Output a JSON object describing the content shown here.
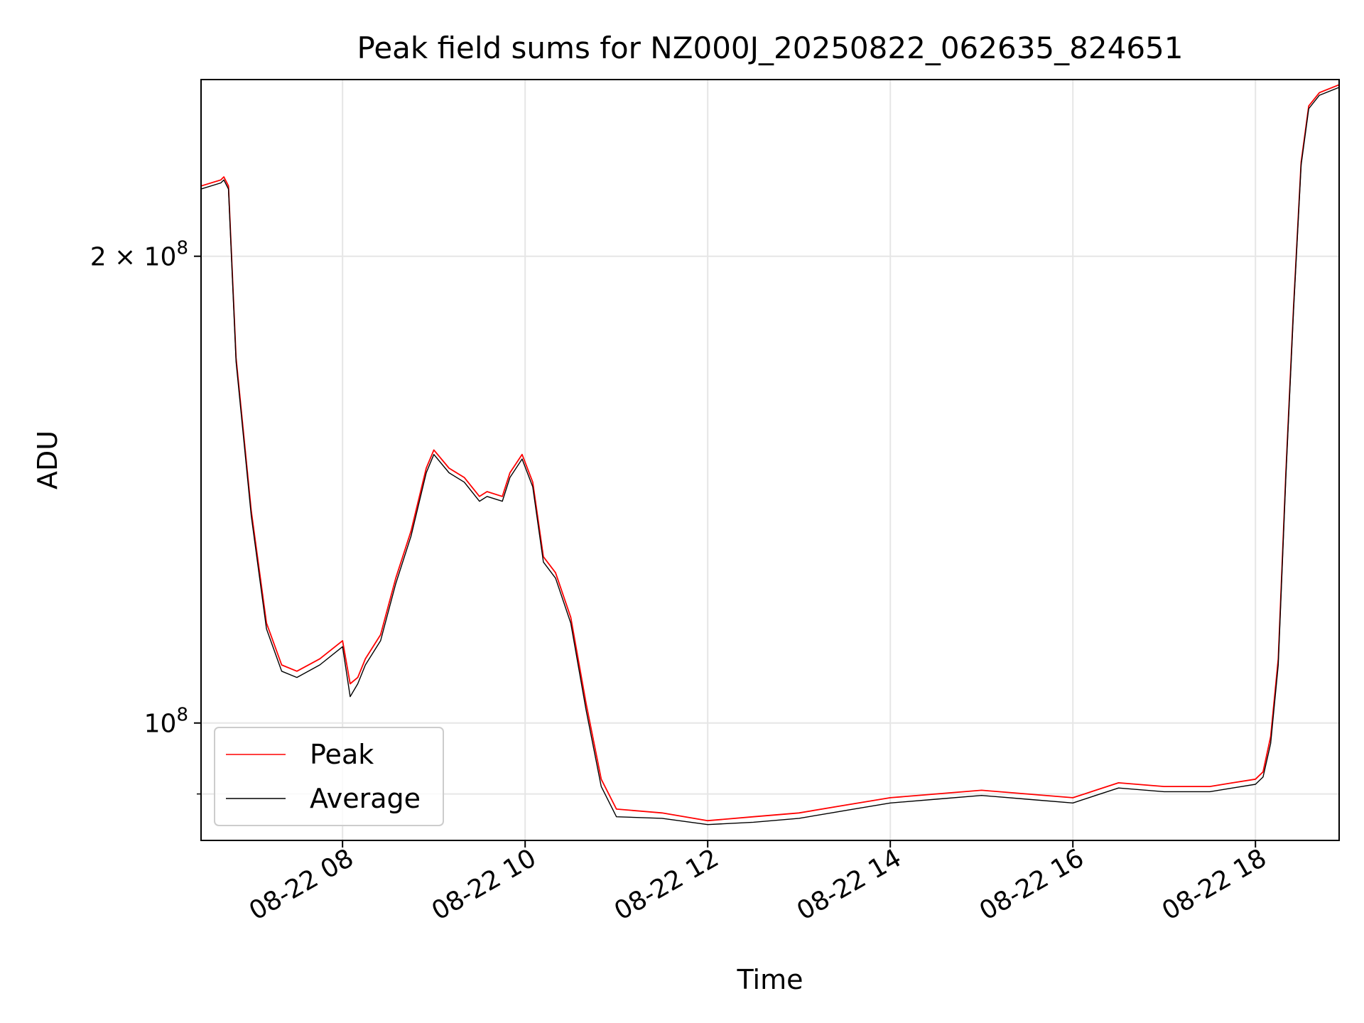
{
  "chart_data": {
    "type": "line",
    "title": "Peak field sums for NZ000J_20250822_062635_824651",
    "xlabel": "Time",
    "ylabel": "ADU",
    "yscale": "log",
    "grid": true,
    "legend_position": "lower-left",
    "xlim": [
      "2025-08-22 06:27",
      "2025-08-22 18:55"
    ],
    "ylim": [
      84000000,
      260000000
    ],
    "x_ticks": [
      {
        "value": "2025-08-22 08:00",
        "label": "08-22 08"
      },
      {
        "value": "2025-08-22 10:00",
        "label": "08-22 10"
      },
      {
        "value": "2025-08-22 12:00",
        "label": "08-22 12"
      },
      {
        "value": "2025-08-22 14:00",
        "label": "08-22 14"
      },
      {
        "value": "2025-08-22 16:00",
        "label": "08-22 16"
      },
      {
        "value": "2025-08-22 18:00",
        "label": "08-22 18"
      }
    ],
    "y_ticks": [
      {
        "value": 100000000,
        "base": "10",
        "exp": "8",
        "mantissa": ""
      },
      {
        "value": 200000000,
        "base": "10",
        "exp": "8",
        "mantissa": "2 × "
      }
    ],
    "y_minor_ticks": [
      90000000
    ],
    "colors": {
      "peak": "#ff0000",
      "average": "#000000",
      "grid": "#e6e6e6"
    },
    "series": [
      {
        "name": "Peak",
        "color": "#ff0000",
        "x": [
          "2025-08-22 06:27",
          "2025-08-22 06:40",
          "2025-08-22 06:42",
          "2025-08-22 06:45",
          "2025-08-22 06:50",
          "2025-08-22 07:00",
          "2025-08-22 07:10",
          "2025-08-22 07:20",
          "2025-08-22 07:30",
          "2025-08-22 07:45",
          "2025-08-22 08:00",
          "2025-08-22 08:05",
          "2025-08-22 08:10",
          "2025-08-22 08:15",
          "2025-08-22 08:25",
          "2025-08-22 08:35",
          "2025-08-22 08:45",
          "2025-08-22 08:55",
          "2025-08-22 09:00",
          "2025-08-22 09:10",
          "2025-08-22 09:20",
          "2025-08-22 09:30",
          "2025-08-22 09:35",
          "2025-08-22 09:45",
          "2025-08-22 09:50",
          "2025-08-22 09:58",
          "2025-08-22 10:05",
          "2025-08-22 10:12",
          "2025-08-22 10:20",
          "2025-08-22 10:30",
          "2025-08-22 10:40",
          "2025-08-22 10:50",
          "2025-08-22 11:00",
          "2025-08-22 11:30",
          "2025-08-22 12:00",
          "2025-08-22 12:30",
          "2025-08-22 13:00",
          "2025-08-22 13:30",
          "2025-08-22 14:00",
          "2025-08-22 14:30",
          "2025-08-22 15:00",
          "2025-08-22 15:30",
          "2025-08-22 16:00",
          "2025-08-22 16:15",
          "2025-08-22 16:30",
          "2025-08-22 17:00",
          "2025-08-22 17:30",
          "2025-08-22 17:45",
          "2025-08-22 18:00",
          "2025-08-22 18:05",
          "2025-08-22 18:10",
          "2025-08-22 18:15",
          "2025-08-22 18:20",
          "2025-08-22 18:25",
          "2025-08-22 18:30",
          "2025-08-22 18:35",
          "2025-08-22 18:42",
          "2025-08-22 18:55"
        ],
        "values": [
          222000000,
          224000000,
          225000000,
          222000000,
          172000000,
          137000000,
          116000000,
          109000000,
          108000000,
          110000000,
          113000000,
          106000000,
          107000000,
          110000000,
          114000000,
          124000000,
          133000000,
          146000000,
          150000000,
          146000000,
          144000000,
          140000000,
          141000000,
          140000000,
          145000000,
          149000000,
          143000000,
          128000000,
          125000000,
          117000000,
          103000000,
          92000000,
          88000000,
          87500000,
          86500000,
          87000000,
          87500000,
          88500000,
          89500000,
          90000000,
          90500000,
          90000000,
          89500000,
          90500000,
          91500000,
          91000000,
          91000000,
          91500000,
          92000000,
          93000000,
          98000000,
          110000000,
          145000000,
          185000000,
          230000000,
          250000000,
          255000000,
          258000000
        ]
      },
      {
        "name": "Average",
        "color": "#000000",
        "x": [
          "2025-08-22 06:27",
          "2025-08-22 06:40",
          "2025-08-22 06:42",
          "2025-08-22 06:45",
          "2025-08-22 06:50",
          "2025-08-22 07:00",
          "2025-08-22 07:10",
          "2025-08-22 07:20",
          "2025-08-22 07:30",
          "2025-08-22 07:45",
          "2025-08-22 08:00",
          "2025-08-22 08:05",
          "2025-08-22 08:10",
          "2025-08-22 08:15",
          "2025-08-22 08:25",
          "2025-08-22 08:35",
          "2025-08-22 08:45",
          "2025-08-22 08:55",
          "2025-08-22 09:00",
          "2025-08-22 09:10",
          "2025-08-22 09:20",
          "2025-08-22 09:30",
          "2025-08-22 09:35",
          "2025-08-22 09:45",
          "2025-08-22 09:50",
          "2025-08-22 09:58",
          "2025-08-22 10:05",
          "2025-08-22 10:12",
          "2025-08-22 10:20",
          "2025-08-22 10:30",
          "2025-08-22 10:40",
          "2025-08-22 10:50",
          "2025-08-22 11:00",
          "2025-08-22 11:30",
          "2025-08-22 12:00",
          "2025-08-22 12:30",
          "2025-08-22 13:00",
          "2025-08-22 13:30",
          "2025-08-22 14:00",
          "2025-08-22 14:30",
          "2025-08-22 15:00",
          "2025-08-22 15:30",
          "2025-08-22 16:00",
          "2025-08-22 16:15",
          "2025-08-22 16:30",
          "2025-08-22 17:00",
          "2025-08-22 17:30",
          "2025-08-22 17:45",
          "2025-08-22 18:00",
          "2025-08-22 18:05",
          "2025-08-22 18:10",
          "2025-08-22 18:15",
          "2025-08-22 18:20",
          "2025-08-22 18:25",
          "2025-08-22 18:30",
          "2025-08-22 18:35",
          "2025-08-22 18:42",
          "2025-08-22 18:55"
        ],
        "values": [
          221000000,
          223000000,
          224000000,
          221000000,
          171000000,
          136000000,
          115000000,
          108000000,
          107000000,
          109000000,
          112000000,
          104000000,
          106000000,
          109000000,
          113000000,
          123000000,
          132000000,
          145000000,
          149000000,
          145000000,
          143000000,
          139000000,
          140000000,
          139000000,
          144000000,
          148000000,
          142000000,
          127000000,
          124000000,
          116000000,
          102000000,
          91000000,
          87000000,
          86800000,
          86000000,
          86300000,
          86800000,
          87800000,
          88800000,
          89300000,
          89800000,
          89300000,
          88800000,
          89800000,
          90800000,
          90300000,
          90300000,
          90800000,
          91300000,
          92300000,
          97000000,
          109000000,
          144000000,
          184000000,
          229000000,
          249000000,
          254000000,
          257000000
        ]
      }
    ]
  }
}
